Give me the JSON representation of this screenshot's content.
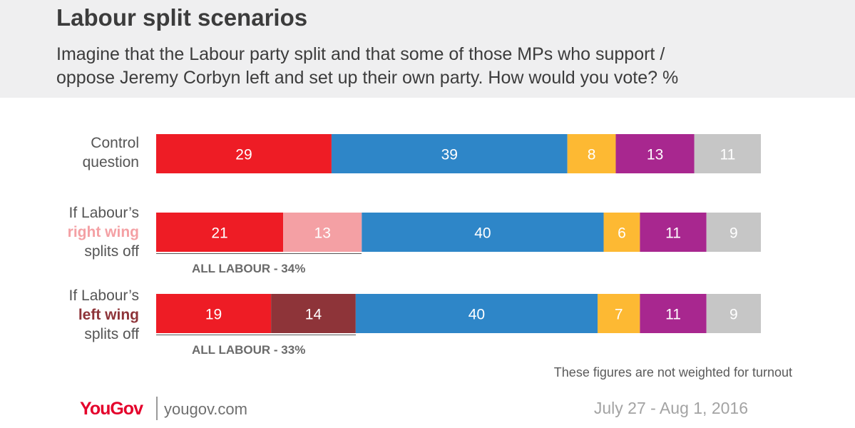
{
  "title": "Labour split scenarios",
  "subtitle_lines": [
    "Imagine that the Labour party split and that some of those MPs who support /",
    "oppose Jeremy Corbyn left and set up their own party. How would you vote? %"
  ],
  "chart_data": {
    "type": "bar",
    "orientation": "horizontal",
    "stacked": true,
    "categories": [
      "Control question",
      "If Labour's right wing splits off",
      "If Labour's left wing splits off"
    ],
    "rows": [
      {
        "label_lines": [
          "Control",
          "question"
        ],
        "segments": [
          {
            "value": 29,
            "color": "#ee1c25"
          },
          {
            "value": 39,
            "color": "#2e86c8"
          },
          {
            "value": 8,
            "color": "#fdb933"
          },
          {
            "value": 13,
            "color": "#a8278f"
          },
          {
            "value": 11,
            "color": "#c6c6c6"
          }
        ]
      },
      {
        "label_lines": [
          "If Labour’s",
          "right wing",
          "splits off"
        ],
        "segments": [
          {
            "value": 21,
            "color": "#ee1c25"
          },
          {
            "value": 13,
            "color": "#f4a0a4"
          },
          {
            "value": 40,
            "color": "#2e86c8"
          },
          {
            "value": 6,
            "color": "#fdb933"
          },
          {
            "value": 11,
            "color": "#a8278f"
          },
          {
            "value": 9,
            "color": "#c6c6c6"
          }
        ],
        "group_note": {
          "label": "ALL LABOUR - 34%",
          "value": 34
        }
      },
      {
        "label_lines": [
          "If Labour’s",
          "left wing",
          "splits off"
        ],
        "segments": [
          {
            "value": 19,
            "color": "#ee1c25"
          },
          {
            "value": 14,
            "color": "#8e3439"
          },
          {
            "value": 40,
            "color": "#2e86c8"
          },
          {
            "value": 7,
            "color": "#fdb933"
          },
          {
            "value": 11,
            "color": "#a8278f"
          },
          {
            "value": 9,
            "color": "#c6c6c6"
          }
        ],
        "group_note": {
          "label": "ALL LABOUR - 33%",
          "value": 33
        }
      }
    ],
    "xlim": [
      0,
      100
    ],
    "grid": false,
    "legend": "none"
  },
  "note": "These figures are not weighted for turnout",
  "footer": {
    "logo": "YouGov",
    "site": "yougov.com",
    "date": "July 27 - Aug 1, 2016"
  }
}
